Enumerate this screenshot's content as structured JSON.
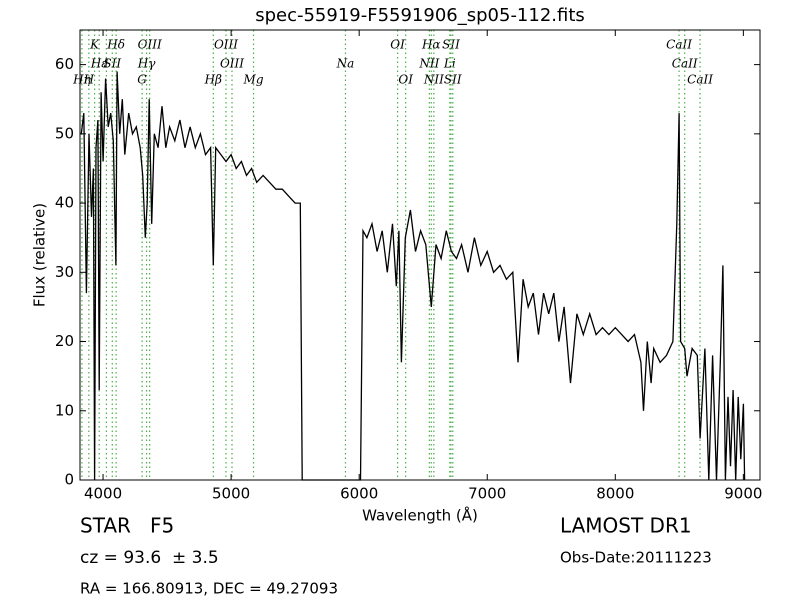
{
  "chart_data": {
    "type": "line",
    "title": "spec-55919-F5591906_sp05-112.fits",
    "x_label": "Wavelength (Å)",
    "y_label": "Flux (relative)",
    "xlim": [
      3820,
      9130
    ],
    "ylim": [
      0,
      65
    ],
    "xticks": [
      4000,
      5000,
      6000,
      7000,
      8000,
      9000
    ],
    "yticks": [
      0,
      10,
      20,
      30,
      40,
      50,
      60
    ],
    "color": "#000000",
    "x": [
      3830,
      3850,
      3870,
      3890,
      3910,
      3925,
      3934,
      3945,
      3960,
      3970,
      3985,
      4000,
      4020,
      4040,
      4060,
      4080,
      4100,
      4110,
      4130,
      4150,
      4170,
      4200,
      4230,
      4260,
      4290,
      4310,
      4330,
      4345,
      4360,
      4380,
      4400,
      4430,
      4460,
      4490,
      4520,
      4560,
      4600,
      4640,
      4680,
      4720,
      4760,
      4800,
      4840,
      4861,
      4880,
      4920,
      4960,
      5000,
      5040,
      5080,
      5120,
      5160,
      5200,
      5250,
      5300,
      5350,
      5400,
      5450,
      5500,
      5540,
      5555,
      6010,
      6030,
      6060,
      6100,
      6140,
      6180,
      6220,
      6260,
      6290,
      6310,
      6330,
      6360,
      6400,
      6440,
      6480,
      6520,
      6563,
      6600,
      6640,
      6680,
      6720,
      6760,
      6800,
      6850,
      6900,
      6950,
      7000,
      7050,
      7100,
      7150,
      7200,
      7240,
      7280,
      7320,
      7360,
      7400,
      7440,
      7480,
      7520,
      7560,
      7600,
      7650,
      7700,
      7750,
      7800,
      7850,
      7900,
      7950,
      8000,
      8050,
      8100,
      8150,
      8200,
      8220,
      8250,
      8280,
      8300,
      8350,
      8400,
      8450,
      8480,
      8498,
      8510,
      8542,
      8560,
      8600,
      8640,
      8662,
      8700,
      8730,
      8760,
      8790,
      8820,
      8840,
      8860,
      8880,
      8900,
      8920,
      8940,
      8960,
      8980,
      9000,
      9010
    ],
    "values": [
      50,
      53,
      27,
      50,
      38,
      45,
      0,
      48,
      52,
      13,
      56,
      46,
      58,
      51,
      53,
      49,
      31,
      59,
      50,
      55,
      47,
      53,
      50,
      51,
      48,
      44,
      35,
      40,
      55,
      37,
      50,
      48,
      54,
      48,
      51,
      49,
      52,
      48,
      51,
      48,
      50,
      47,
      48,
      31,
      48,
      47,
      46,
      47,
      45,
      46,
      44,
      45,
      43,
      44,
      43,
      42,
      42,
      41,
      40,
      40,
      0,
      0,
      36,
      35,
      37,
      33,
      36,
      30,
      37,
      28,
      36,
      17,
      35,
      39,
      33,
      36,
      34,
      25,
      34,
      32,
      36,
      33,
      32,
      34,
      30,
      35,
      31,
      33,
      30,
      31,
      29,
      30,
      17,
      29,
      25,
      27,
      21,
      27,
      24,
      27,
      20,
      25,
      14,
      24,
      21,
      24,
      21,
      22,
      21,
      22,
      21,
      20,
      21,
      17,
      10,
      20,
      14,
      19,
      17,
      18,
      20,
      37,
      53,
      20,
      19,
      15,
      19,
      18,
      6,
      19,
      0,
      18,
      0,
      17,
      31,
      0,
      12,
      2,
      13,
      0,
      12,
      3,
      11,
      0
    ],
    "spectral_lines": {
      "color": "#4daf4a",
      "rows": [
        [
          {
            "label": "K",
            "x": 3934
          },
          {
            "label": "Hδ",
            "x": 4102
          },
          {
            "label": "OIII",
            "x": 4364
          },
          {
            "label": "OIII",
            "x": 4960
          },
          {
            "label": "OI",
            "x": 6300
          },
          {
            "label": "Hα",
            "x": 6563
          },
          {
            "label": "SII",
            "x": 6717
          },
          {
            "label": "CaII",
            "x": 8498
          }
        ],
        [
          {
            "label": "Hε",
            "x": 3970
          },
          {
            "label": "I",
            "x": 4026
          },
          {
            "label": "SII",
            "x": 4072
          },
          {
            "label": "Hγ",
            "x": 4340
          },
          {
            "label": "OIII",
            "x": 5007
          },
          {
            "label": "Na",
            "x": 5893
          },
          {
            "label": "NII",
            "x": 6548
          },
          {
            "label": "Li",
            "x": 6708
          },
          {
            "label": "CaII",
            "x": 8542
          }
        ],
        [
          {
            "label": "Hη",
            "x": 3835
          },
          {
            "label": "H",
            "x": 3889
          },
          {
            "label": "G",
            "x": 4305
          },
          {
            "label": "Hβ",
            "x": 4861
          },
          {
            "label": "Mg",
            "x": 5175
          },
          {
            "label": "OI",
            "x": 6363
          },
          {
            "label": "NII",
            "x": 6583
          },
          {
            "label": "SII",
            "x": 6731
          },
          {
            "label": "CaII",
            "x": 8662
          }
        ]
      ]
    },
    "annotations": {
      "object": "STAR   F5",
      "cz": "cz = 93.6  ± 3.5",
      "coords": "RA = 166.80913, DEC = 49.27093",
      "survey": "LAMOST DR1",
      "obs_date": "Obs-Date:20111223"
    }
  }
}
